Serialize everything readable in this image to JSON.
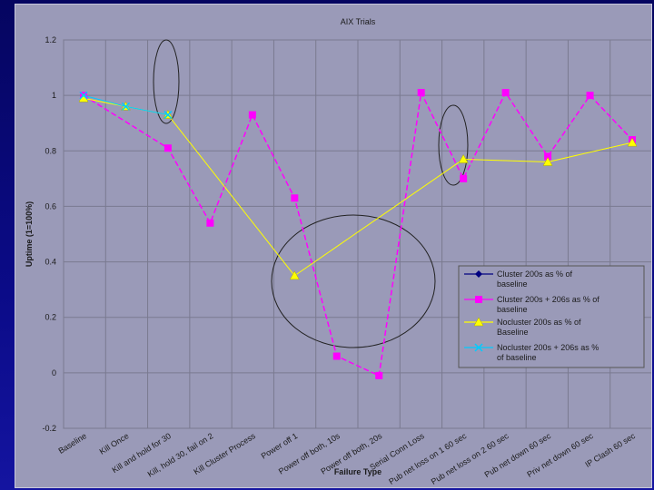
{
  "chart_data": {
    "type": "line",
    "title": "AIX Trials",
    "xlabel": "Failure Type",
    "ylabel": "Uptime (1=100%)",
    "ylim": [
      -0.2,
      1.2
    ],
    "yticks": [
      "1.2",
      "1",
      "0.8",
      "0.6",
      "0.4",
      "0.2",
      "0",
      "-0.2"
    ],
    "categories": [
      "Baseline",
      "Kill Once",
      "Kill and hold for 30",
      "Kill, hold 30, fail on 2",
      "Kill Cluster Process",
      "Power off 1",
      "Power off both, 10s",
      "Power off both, 20s",
      "Serial Conn Loss",
      "Pub net loss on 1 60 sec",
      "Pub net loss on 2 60 sec",
      "Pub net down 60 sec",
      "Priv net down 60 sec",
      "IP Clash 60 sec"
    ],
    "series": [
      {
        "name": "Cluster 200s as % of baseline",
        "color": "#000080",
        "marker": "diamond",
        "values": [
          1.0,
          null,
          null,
          null,
          null,
          null,
          null,
          null,
          null,
          null,
          null,
          null,
          null,
          null
        ]
      },
      {
        "name": "Cluster 200s + 206s as % of baseline",
        "color": "#ff00ff",
        "marker": "square",
        "values": [
          1.0,
          null,
          0.81,
          0.54,
          0.93,
          0.63,
          0.06,
          -0.01,
          1.01,
          0.7,
          1.01,
          0.78,
          1.0,
          0.84
        ]
      },
      {
        "name": "Nocluster 200s as % of Baseline",
        "color": "#ffff00",
        "marker": "triangle",
        "values": [
          0.99,
          0.96,
          0.93,
          null,
          null,
          0.35,
          null,
          null,
          null,
          0.77,
          null,
          0.76,
          null,
          0.83
        ]
      },
      {
        "name": "Nocluster 200s + 206s as % of baseline",
        "color": "#00ccff",
        "marker": "x",
        "values": [
          1.0,
          0.96,
          0.93,
          null,
          null,
          null,
          null,
          null,
          null,
          null,
          null,
          null,
          null,
          null
        ]
      }
    ],
    "grid": true,
    "legend_position": "right"
  }
}
